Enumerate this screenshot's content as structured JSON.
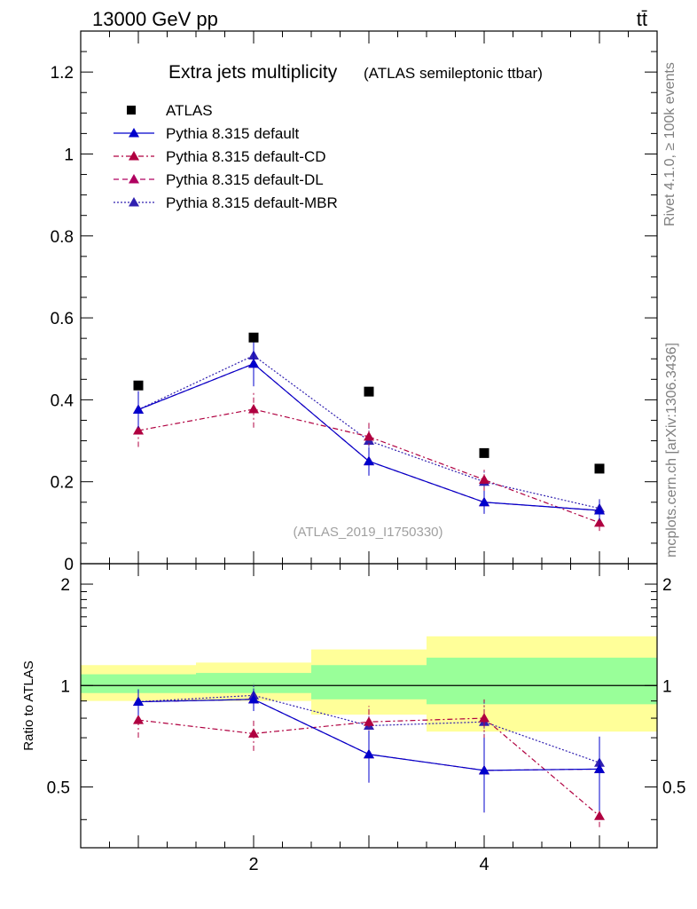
{
  "header": {
    "energy_label": "13000 GeV pp",
    "process_label": "tt̄"
  },
  "side_labels": {
    "rivet": "Rivet 4.1.0, ≥ 100k events",
    "mcplots": "mcplots.cern.ch [arXiv:1306.3436]"
  },
  "chart_data": [
    {
      "type": "line",
      "panel": "main",
      "title": "Extra jets multiplicity",
      "subtitle": "(ATLAS semileptonic ttbar)",
      "analysis_tag": "(ATLAS_2019_I1750330)",
      "xlabel": "",
      "ylabel": "",
      "xlim": [
        0.5,
        5.5
      ],
      "ylim": [
        0,
        1.3
      ],
      "yticks": [
        0,
        0.2,
        0.4,
        0.6,
        0.8,
        1,
        1.2
      ],
      "ytick_labels": [
        "0",
        "0.2",
        "0.4",
        "0.6",
        "0.8",
        "1",
        "1.2"
      ],
      "xticks": [
        2,
        4
      ],
      "x": [
        1,
        2,
        3,
        4,
        5
      ],
      "legend_position": "top-left",
      "series": [
        {
          "name": "ATLAS",
          "marker": "square",
          "color": "#000000",
          "line": "none",
          "values": [
            0.435,
            0.552,
            0.42,
            0.27,
            0.232
          ]
        },
        {
          "name": "Pythia 8.315 default",
          "marker": "triangle",
          "color": "#0000cc",
          "line": "solid",
          "values": [
            0.376,
            0.488,
            0.25,
            0.15,
            0.13
          ],
          "err": [
            0.045,
            0.055,
            0.035,
            0.028,
            0.025
          ]
        },
        {
          "name": "Pythia 8.315 default-CD",
          "marker": "triangle",
          "color": "#b00040",
          "line": "dashdot",
          "values": [
            0.325,
            0.377,
            0.31,
            0.205,
            0.1
          ],
          "err": [
            0.04,
            0.045,
            0.04,
            0.03,
            0.02
          ]
        },
        {
          "name": "Pythia 8.315 default-DL",
          "marker": "triangle",
          "color": "#b00060",
          "line": "dashed",
          "values": [
            0.376,
            0.488,
            0.25,
            0.15,
            0.13
          ],
          "err": [
            0.045,
            0.055,
            0.035,
            0.028,
            0.025
          ]
        },
        {
          "name": "Pythia 8.315 default-MBR",
          "marker": "triangle",
          "color": "#3020b0",
          "line": "dotted",
          "values": [
            0.376,
            0.508,
            0.3,
            0.2,
            0.135
          ],
          "err": [
            0.045,
            0.055,
            0.04,
            0.03,
            0.025
          ]
        }
      ]
    },
    {
      "type": "line",
      "panel": "ratio",
      "ylabel": "Ratio to ATLAS",
      "xlim": [
        0.5,
        5.5
      ],
      "ylim": [
        0.33,
        2.3
      ],
      "yticks": [
        0.5,
        1,
        2
      ],
      "ytick_labels": [
        "0.5",
        "1",
        "2"
      ],
      "xticks": [
        2,
        4
      ],
      "xtick_labels": [
        "2",
        "4"
      ],
      "x": [
        1,
        2,
        3,
        4,
        5
      ],
      "bands": {
        "bin_edges": [
          0.5,
          1.5,
          2.5,
          3.5,
          4.5,
          5.5
        ],
        "yellow": [
          [
            0.9,
            1.15
          ],
          [
            0.9,
            1.17
          ],
          [
            0.82,
            1.28
          ],
          [
            0.73,
            1.4
          ],
          [
            0.73,
            1.4
          ]
        ],
        "green": [
          [
            0.95,
            1.08
          ],
          [
            0.95,
            1.09
          ],
          [
            0.91,
            1.15
          ],
          [
            0.88,
            1.21
          ],
          [
            0.88,
            1.21
          ]
        ]
      },
      "series": [
        {
          "name": "Pythia 8.315 default",
          "color": "#0000cc",
          "line": "solid",
          "values": [
            0.895,
            0.91,
            0.625,
            0.56,
            0.565
          ],
          "err": [
            0.08,
            0.07,
            0.11,
            0.14,
            0.14
          ]
        },
        {
          "name": "Pythia 8.315 default-CD",
          "color": "#b00040",
          "line": "dashdot",
          "values": [
            0.79,
            0.72,
            0.78,
            0.8,
            0.41
          ],
          "err": [
            0.09,
            0.08,
            0.09,
            0.11,
            0.03
          ]
        },
        {
          "name": "Pythia 8.315 default-DL",
          "color": "#b00060",
          "line": "dashed",
          "values": [
            0.895,
            0.91,
            0.625,
            0.56,
            0.565
          ],
          "err": [
            0.08,
            0.07,
            0.11,
            0.14,
            0.14
          ]
        },
        {
          "name": "Pythia 8.315 default-MBR",
          "color": "#3020b0",
          "line": "dotted",
          "values": [
            0.895,
            0.935,
            0.76,
            0.78,
            0.59
          ],
          "err": [
            0.08,
            0.08,
            0.1,
            0.12,
            0.12
          ]
        }
      ]
    }
  ]
}
